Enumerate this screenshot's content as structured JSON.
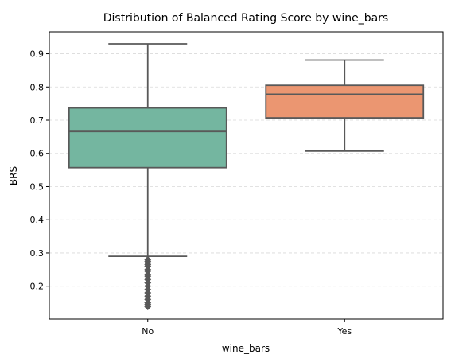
{
  "chart_data": {
    "type": "box",
    "title": "Distribution of Balanced Rating Score by wine_bars",
    "xlabel": "wine_bars",
    "ylabel": "BRS",
    "categories": [
      "No",
      "Yes"
    ],
    "ylim": [
      0.101,
      0.966
    ],
    "yticks": [
      0.2,
      0.3,
      0.4,
      0.5,
      0.6,
      0.7,
      0.8,
      0.9
    ],
    "ytick_labels": [
      "0.2",
      "0.3",
      "0.4",
      "0.5",
      "0.6",
      "0.7",
      "0.8",
      "0.9"
    ],
    "grid": "horizontal dashed",
    "boxes": [
      {
        "category": "No",
        "color": "#74b6a0",
        "whisker_low": 0.29,
        "q1": 0.557,
        "median": 0.666,
        "q3": 0.737,
        "whisker_high": 0.93,
        "outliers": [
          0.28,
          0.275,
          0.27,
          0.265,
          0.26,
          0.25,
          0.245,
          0.235,
          0.23,
          0.22,
          0.21,
          0.2,
          0.19,
          0.18,
          0.17,
          0.16,
          0.15,
          0.145,
          0.14,
          0.138
        ]
      },
      {
        "category": "Yes",
        "color": "#eb9671",
        "whisker_low": 0.607,
        "q1": 0.707,
        "median": 0.778,
        "q3": 0.805,
        "whisker_high": 0.881,
        "outliers": []
      }
    ]
  }
}
